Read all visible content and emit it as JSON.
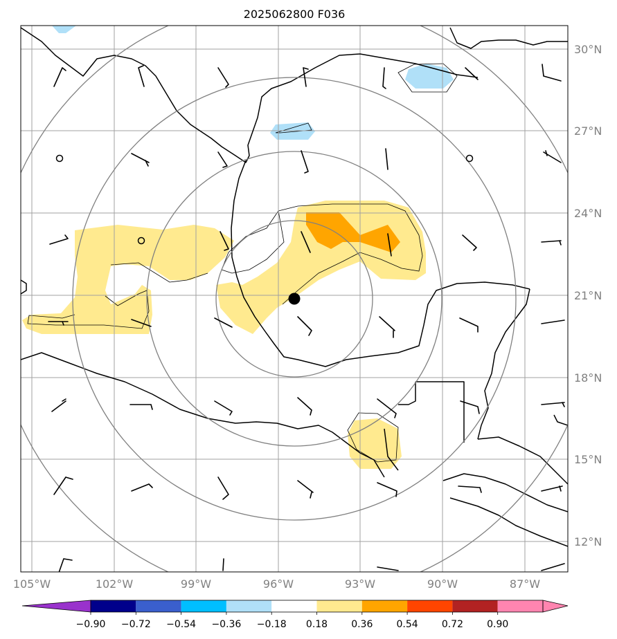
{
  "title": "2025062800 F036",
  "lat_labels": [
    "30°N",
    "27°N",
    "24°N",
    "21°N",
    "18°N",
    "15°N",
    "12°N"
  ],
  "lon_labels": [
    "105°W",
    "102°W",
    "99°W",
    "96°W",
    "93°W",
    "90°W",
    "87°W"
  ],
  "colorbar": {
    "colors": [
      "#9932cc",
      "#00008b",
      "#3a5fcd",
      "#00bfff",
      "#b0e0f8",
      "#ffffff",
      "#ffea8f",
      "#ffa500",
      "#ff4500",
      "#b22222",
      "#ff85b0"
    ],
    "tick_labels": [
      "−0.90",
      "−0.72",
      "−0.54",
      "−0.36",
      "−0.18",
      "0.18",
      "0.36",
      "0.54",
      "0.72",
      "0.90"
    ]
  },
  "map": {
    "colors": {
      "coast": "#000000",
      "grid": "#a0a0a0",
      "range_rings": "#808080",
      "positive_fill": "#ffea8f",
      "strong_positive_fill": "#ffa500",
      "negative_fill": "#b0e0f8"
    },
    "center_marker": {
      "lat": 20.9,
      "lon": -95.4
    },
    "range_rings": 4,
    "calm_markers": [
      {
        "lat": 25.9,
        "lon": -104.0
      },
      {
        "lat": 25.9,
        "lon": -89.0
      },
      {
        "lat": 23.0,
        "lon": -101.0
      }
    ]
  }
}
